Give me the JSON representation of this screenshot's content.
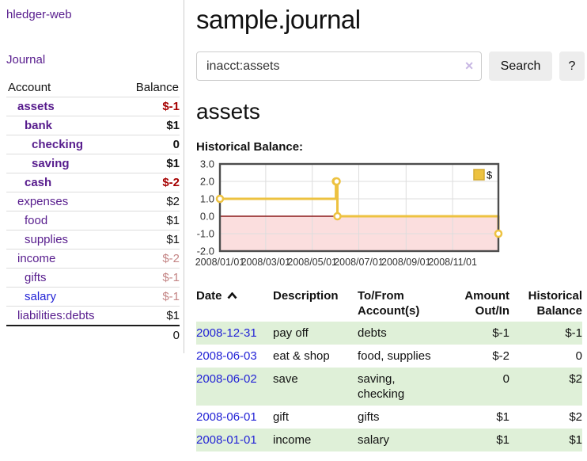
{
  "sidebar": {
    "app_title": "hledger-web",
    "journal_label": "Journal",
    "accounts_table": {
      "headers": {
        "account": "Account",
        "balance": "Balance"
      },
      "rows": [
        {
          "name": "assets",
          "balance": "$-1",
          "depth": 0,
          "bold": true,
          "negative": "strong"
        },
        {
          "name": "bank",
          "balance": "$1",
          "depth": 1,
          "bold": true
        },
        {
          "name": "checking",
          "balance": "0",
          "depth": 2,
          "bold": true
        },
        {
          "name": "saving",
          "balance": "$1",
          "depth": 2,
          "bold": true
        },
        {
          "name": "cash",
          "balance": "$-2",
          "depth": 1,
          "bold": true,
          "negative": "strong"
        },
        {
          "name": "expenses",
          "balance": "$2",
          "depth": 0
        },
        {
          "name": "food",
          "balance": "$1",
          "depth": 1
        },
        {
          "name": "supplies",
          "balance": "$1",
          "depth": 1
        },
        {
          "name": "income",
          "balance": "$-2",
          "depth": 0,
          "negative": "muted"
        },
        {
          "name": "gifts",
          "balance": "$-1",
          "depth": 1,
          "negative": "muted"
        },
        {
          "name": "salary",
          "balance": "$-1",
          "depth": 1,
          "negative": "muted"
        },
        {
          "name": "liabilities:debts",
          "balance": "$1",
          "depth": 0
        }
      ],
      "total": "0"
    }
  },
  "main": {
    "title": "sample.journal",
    "search": {
      "value": "inacct:assets",
      "clear_icon": "✕",
      "search_button_label": "Search",
      "help_button_label": "?"
    },
    "account_heading": "assets",
    "chart_label": "Historical Balance:",
    "register_table": {
      "headers": {
        "date": "Date",
        "description": "Description",
        "account": "To/From Account(s)",
        "amount": "Amount Out/In",
        "balance": "Historical Balance"
      },
      "rows": [
        {
          "date": "2008-12-31",
          "description": "pay off",
          "account": "debts",
          "amount": "$-1",
          "balance": "$-1"
        },
        {
          "date": "2008-06-03",
          "description": "eat & shop",
          "account": "food, supplies",
          "amount": "$-2",
          "balance": "0"
        },
        {
          "date": "2008-06-02",
          "description": "save",
          "account": "saving,\nchecking",
          "amount": "0",
          "balance": "$2"
        },
        {
          "date": "2008-06-01",
          "description": "gift",
          "account": "gifts",
          "amount": "$1",
          "balance": "$2"
        },
        {
          "date": "2008-01-01",
          "description": "income",
          "account": "salary",
          "amount": "$1",
          "balance": "$1"
        }
      ]
    }
  },
  "chart_data": {
    "type": "line",
    "title": "Historical Balance:",
    "x_range": [
      "2008-01-01",
      "2008-12-31"
    ],
    "ylim": [
      -2,
      3
    ],
    "x_tick_labels": [
      "2008/01/01",
      "2008/03/01",
      "2008/05/01",
      "2008/07/01",
      "2008/09/01",
      "2008/11/01"
    ],
    "y_tick_values": [
      3,
      2,
      1,
      0,
      -1,
      -2
    ],
    "y_tick_labels": [
      "3.0",
      "2.0",
      "1.0",
      "0.0",
      "-1.0",
      "-2.0"
    ],
    "series": [
      {
        "name": "$",
        "color": "#edc240",
        "step": true,
        "points": [
          {
            "date": "2008-01-01",
            "value": 1
          },
          {
            "date": "2008-06-01",
            "value": 2
          },
          {
            "date": "2008-06-02",
            "value": 2
          },
          {
            "date": "2008-06-03",
            "value": 0
          },
          {
            "date": "2008-12-31",
            "value": -1
          }
        ]
      }
    ],
    "legend_position": "top-right",
    "grid_on": true,
    "negative_region_fill": "#fbdede",
    "zero_line_color": "#8b1a1a",
    "grid_color": "#dddddd",
    "border_color": "#4d4d4d",
    "tick_label_color": "#333333"
  },
  "colors": {
    "link_purple": "#571c8d",
    "link_blue": "#2323d6",
    "negative_strong": "#a60000",
    "negative_muted": "#c48585",
    "negative_table": "#992323",
    "row_stripe_green": "#dff0d8",
    "series_yellow": "#edc240"
  }
}
